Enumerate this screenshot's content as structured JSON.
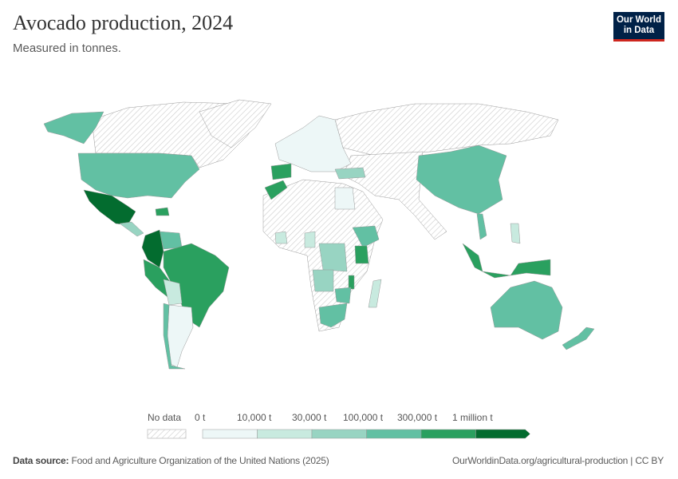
{
  "header": {
    "title": "Avocado production, 2024",
    "subtitle": "Measured in tonnes.",
    "logo": "Our World in Data"
  },
  "legend": {
    "no_data": "No data",
    "ticks": [
      "0 t",
      "10,000 t",
      "30,000 t",
      "100,000 t",
      "300,000 t",
      "1 million t"
    ],
    "colors": [
      "#edf7f7",
      "#c8eadf",
      "#98d4c2",
      "#62c0a3",
      "#2aa05f",
      "#036c2f"
    ],
    "no_data_pattern": "diagonal-hatch"
  },
  "map_data": {
    "Mexico": "1 million t+",
    "Colombia": "1 million t+",
    "Dominican Republic": "300,000–1 million t",
    "Peru": "300,000–1 million t",
    "Brazil": "300,000–1 million t",
    "Indonesia": "300,000–1 million t",
    "Kenya": "300,000–1 million t",
    "United States": "100,000–300,000 t",
    "China": "100,000–300,000 t",
    "Australia": "100,000–300,000 t",
    "South Africa": "100,000–300,000 t",
    "Spain": "100,000–300,000 t",
    "Morocco": "100,000–300,000 t",
    "Ethiopia": "100,000–300,000 t",
    "Venezuela": "100,000–300,000 t",
    "Chile": "100,000–300,000 t",
    "New Zealand": "100,000–300,000 t",
    "Vietnam": "100,000–300,000 t",
    "Malawi": "100,000–300,000 t",
    "DR Congo": "30,000–100,000 t",
    "Angola": "30,000–100,000 t",
    "Turkey": "30,000–100,000 t",
    "Madagascar": "10,000–30,000 t",
    "Bolivia": "10,000–30,000 t",
    "Argentina": "0–10,000 t",
    "Egypt": "0–10,000 t"
  },
  "footer": {
    "source_label": "Data source:",
    "source": "Food and Agriculture Organization of the United Nations (2025)",
    "url": "OurWorldinData.org/agricultural-production | CC BY"
  }
}
